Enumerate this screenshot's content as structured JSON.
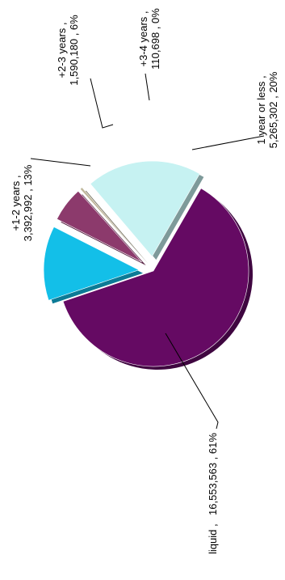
{
  "chart_data": {
    "type": "pie",
    "exploded": true,
    "rotated_text": true,
    "slices": [
      {
        "label": "1 year or less ,",
        "value_label": "5,265,302 , 20%",
        "value": 5265302,
        "percent": 20,
        "color": "#c6f2f2",
        "shadow": "#7e9a9a"
      },
      {
        "label": "+3-4 years ,",
        "value_label": "110,698 , 0%",
        "value": 110698,
        "percent": 0,
        "color": "#bfb79a",
        "shadow": "#7a7563"
      },
      {
        "label": "+2-3 years ,",
        "value_label": "1,590,180 , 6%",
        "value": 1590180,
        "percent": 6,
        "color": "#8c3a6c",
        "shadow": "#5a2546"
      },
      {
        "label": "+1-2 years ,",
        "value_label": "3,392,992 , 13%",
        "value": 3392992,
        "percent": 13,
        "color": "#13bfe8",
        "shadow": "#0c7b96"
      },
      {
        "label": "liquid ,",
        "value_label": "16,553,563 , 61%",
        "value": 16553563,
        "percent": 61,
        "color": "#650a63",
        "shadow": "#3f0640"
      }
    ]
  }
}
